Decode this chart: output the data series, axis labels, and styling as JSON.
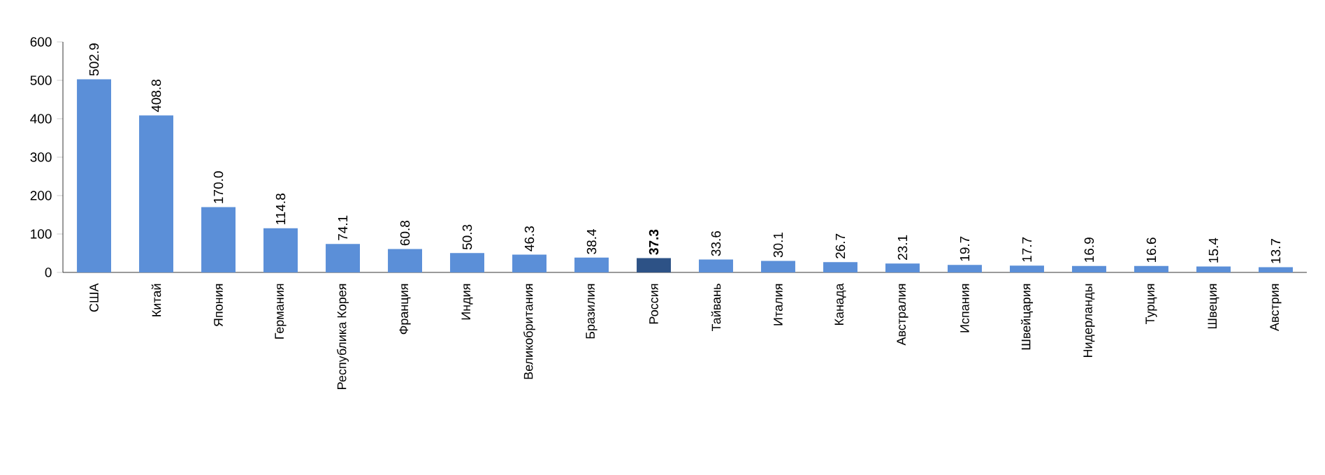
{
  "chart_data": {
    "type": "bar",
    "categories": [
      "США",
      "Китай",
      "Япония",
      "Германия",
      "Республика Корея",
      "Франция",
      "Индия",
      "Великобритания",
      "Бразилия",
      "Россия",
      "Тайвань",
      "Италия",
      "Канада",
      "Австралия",
      "Испания",
      "Швейцария",
      "Нидерланды",
      "Турция",
      "Швеция",
      "Австрия"
    ],
    "values": [
      502.9,
      408.8,
      170.0,
      114.8,
      74.1,
      60.8,
      50.3,
      46.3,
      38.4,
      37.3,
      33.6,
      30.1,
      26.7,
      23.1,
      19.7,
      17.7,
      16.9,
      16.6,
      15.4,
      13.7
    ],
    "value_labels": [
      "502.9",
      "408.8",
      "170.0",
      "114.8",
      "74.1",
      "60.8",
      "50.3",
      "46.3",
      "38.4",
      "**37.3**",
      "33.6",
      "30.1",
      "26.7",
      "23.1",
      "19.7",
      "17.7",
      "16.9",
      "16.6",
      "15.4",
      "13.7"
    ],
    "colors": [
      "#5b8fd8",
      "#5b8fd8",
      "#5b8fd8",
      "#5b8fd8",
      "#5b8fd8",
      "#5b8fd8",
      "#5b8fd8",
      "#5b8fd8",
      "#5b8fd8",
      "#2d5286",
      "#5b8fd8",
      "#5b8fd8",
      "#5b8fd8",
      "#5b8fd8",
      "#5b8fd8",
      "#5b8fd8",
      "#5b8fd8",
      "#5b8fd8",
      "#5b8fd8",
      "#5b8fd8"
    ],
    "ylim": [
      0,
      600
    ],
    "yticks": [
      0,
      100,
      200,
      300,
      400,
      500,
      600
    ],
    "grid": false
  }
}
